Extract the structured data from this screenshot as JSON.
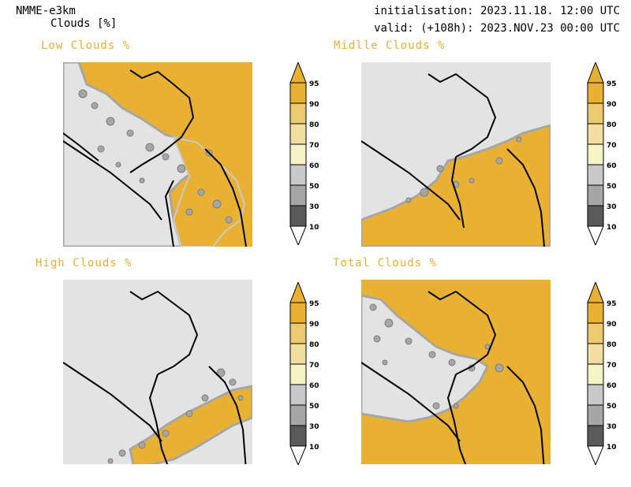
{
  "header": {
    "model": "NMME-e3km",
    "variable": "Clouds [%]",
    "init": "initialisation: 2023.11.18. 12:00 UTC",
    "valid": "valid: (+108h): 2023.NOV.23 00:00 UTC"
  },
  "colors": {
    "title": "#e8b02e",
    "cloud_full": "#e8b133",
    "clear": "#e3e3e3",
    "scale": [
      "#5a5a5a",
      "#7d7d7d",
      "#a6a6a6",
      "#c9c9c9",
      "#f6f4c6",
      "#f2dea0",
      "#edca6f",
      "#e8b133"
    ]
  },
  "panels": [
    {
      "title": "Low Clouds %",
      "coverage": "high"
    },
    {
      "title": "Midlle Clouds %",
      "coverage": "south"
    },
    {
      "title": "High Clouds %",
      "coverage": "low"
    },
    {
      "title": "Total Clouds %",
      "coverage": "high"
    }
  ],
  "colorbar": {
    "labels": [
      "95",
      "90",
      "80",
      "70",
      "60",
      "50",
      "30",
      "10"
    ]
  }
}
